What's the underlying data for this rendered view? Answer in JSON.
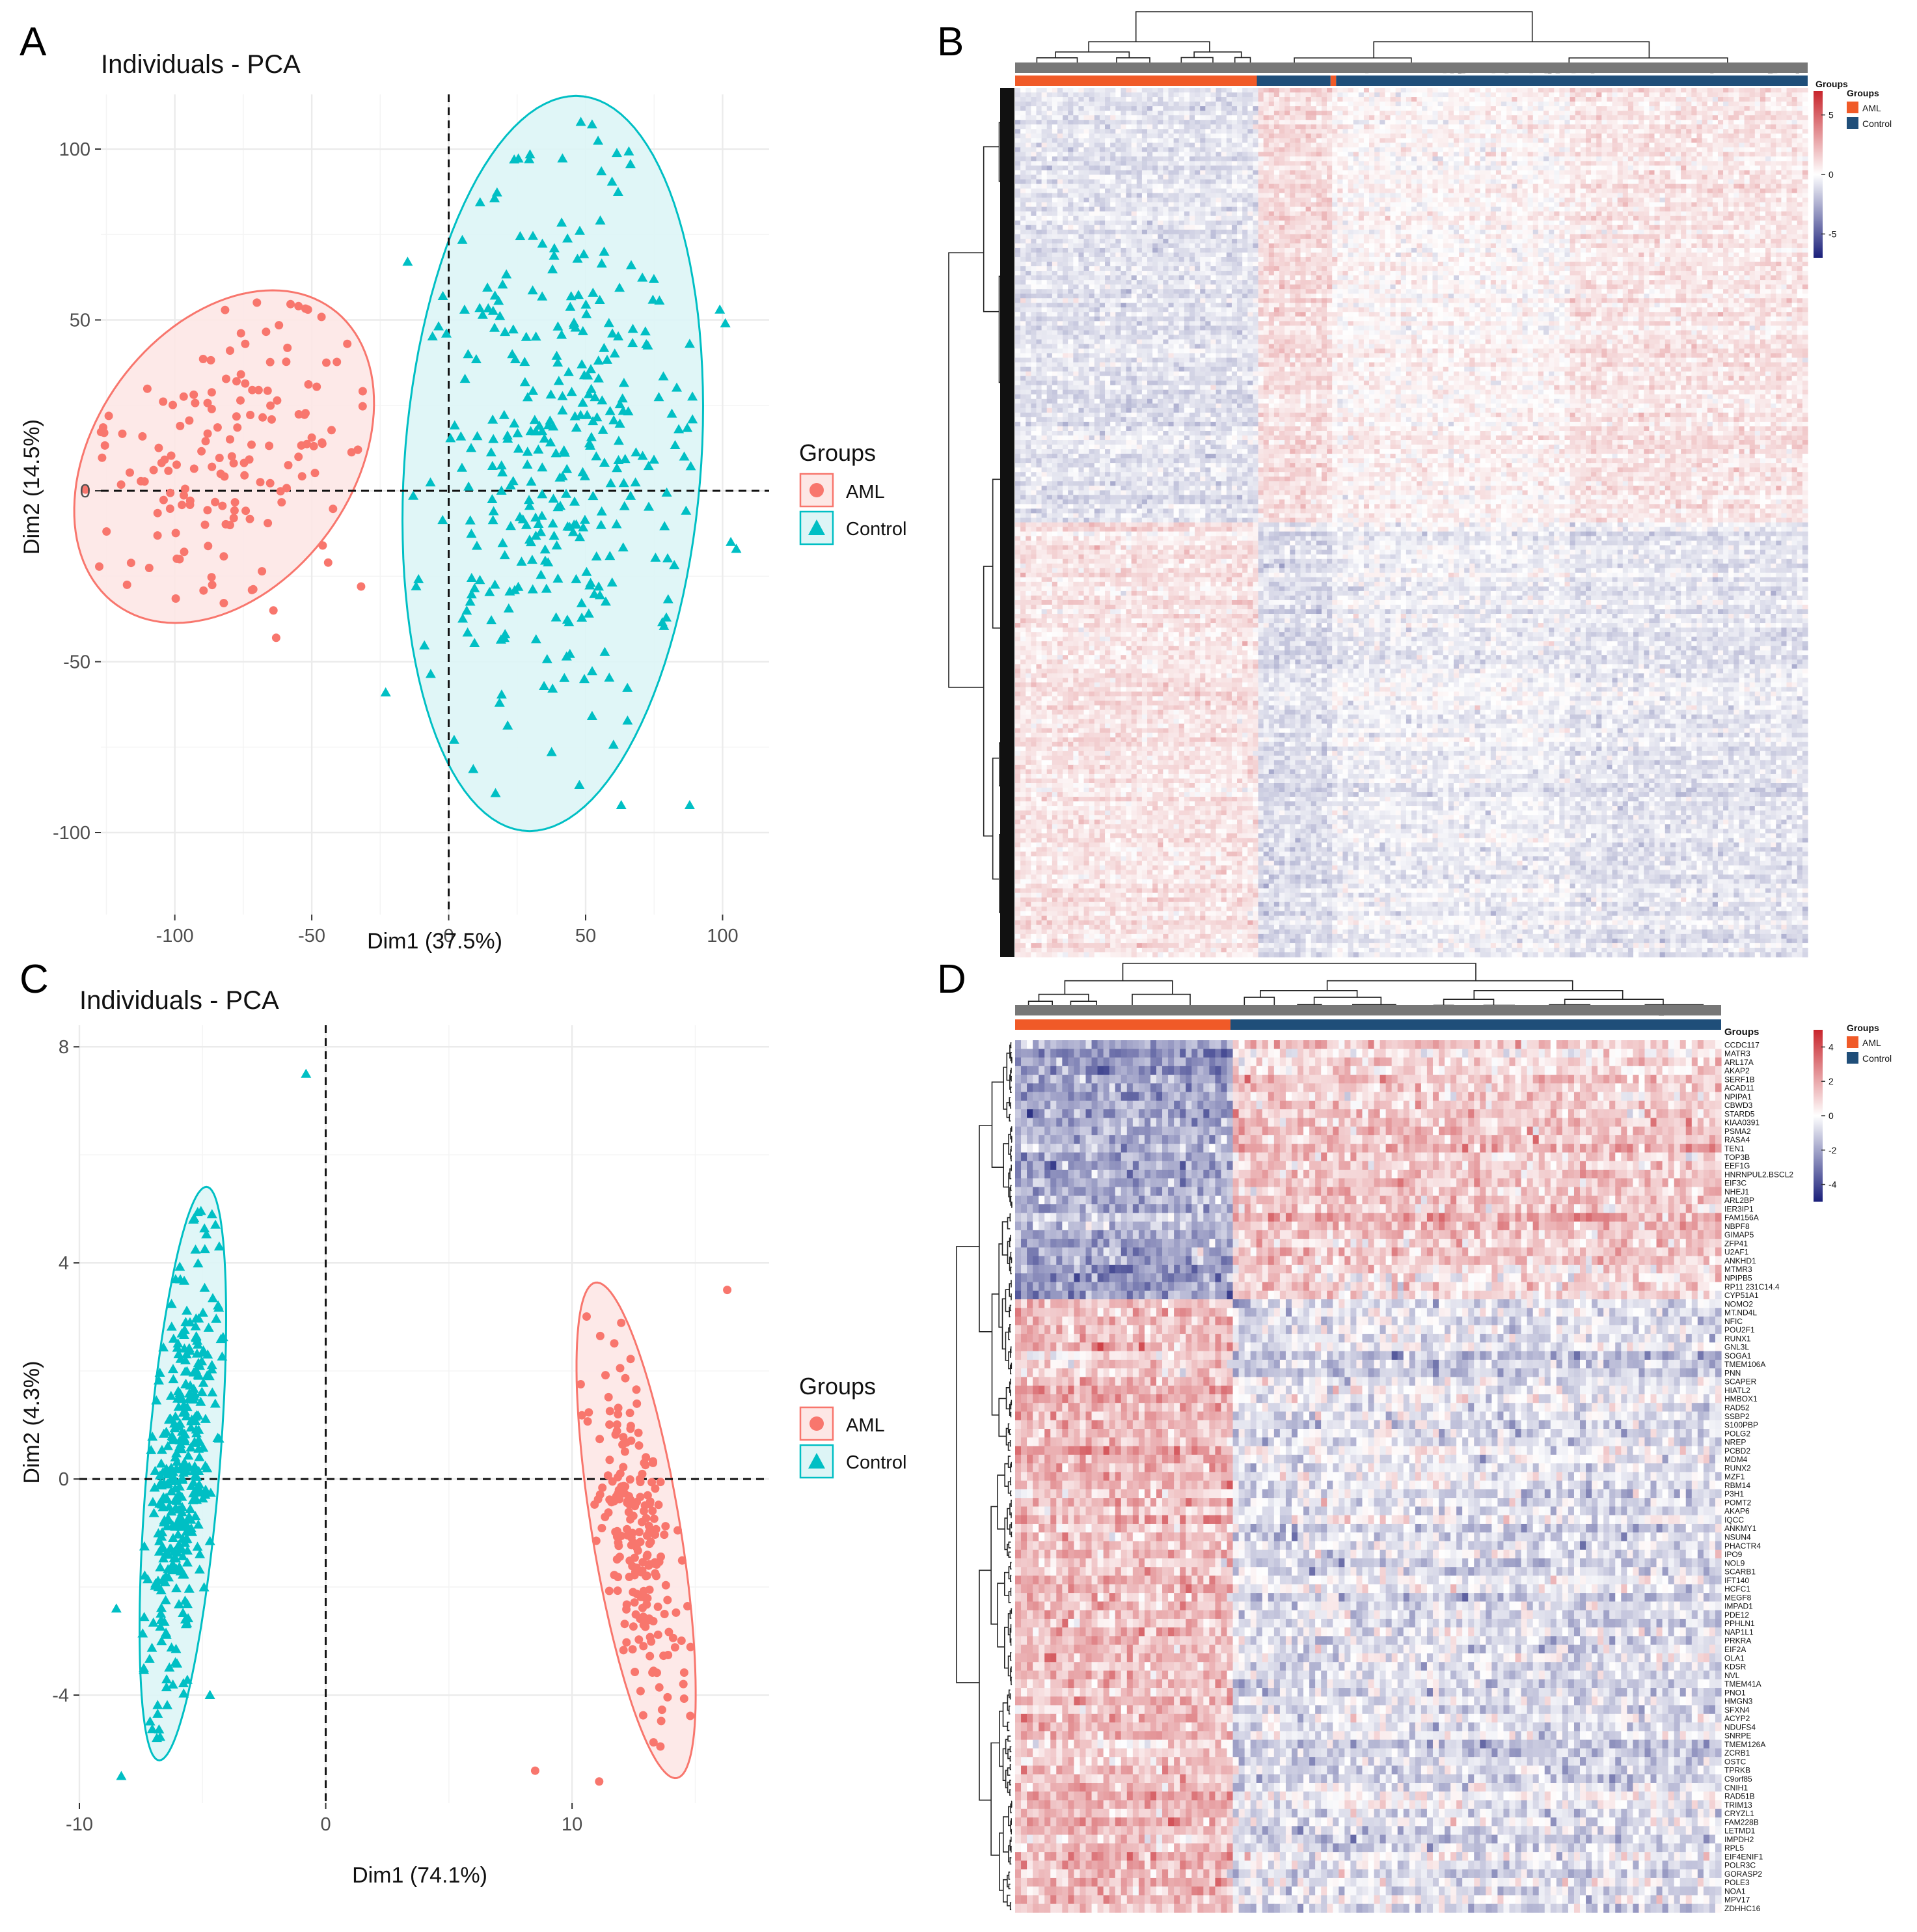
{
  "colors": {
    "aml": "#F8766D",
    "control": "#00BFC4",
    "aml_fill": "#FDE7E5",
    "control_fill": "#DDF5F6",
    "bar_aml": "#F05A28",
    "bar_control": "#1F4E79",
    "heat_high": "#C8252C",
    "heat_low": "#1A1F7A",
    "grid": "#EBEBEB",
    "dendro": "#222222"
  },
  "panels": {
    "A": {
      "letter": "A"
    },
    "B": {
      "letter": "B"
    },
    "C": {
      "letter": "C"
    },
    "D": {
      "letter": "D"
    }
  },
  "legend": {
    "title": "Groups",
    "aml": "AML",
    "control": "Control"
  },
  "chart_data": [
    {
      "id": "A",
      "type": "scatter",
      "title": "Individuals - PCA",
      "xlabel": "Dim1 (37.5%)",
      "ylabel": "Dim2 (14.5%)",
      "xlim": [
        -127,
        117
      ],
      "ylim": [
        -124,
        116
      ],
      "xticks": [
        -100,
        -50,
        0,
        50,
        100
      ],
      "yticks": [
        -100,
        -50,
        0,
        50,
        100
      ],
      "xtick_labels": [
        "-100",
        "-50",
        "0",
        "50",
        "100"
      ],
      "ytick_labels": [
        "-100",
        "-50",
        "0",
        "50",
        "100"
      ],
      "grid": true,
      "legend_position": "right",
      "series": [
        {
          "name": "AML",
          "shape": "circle",
          "n": 150,
          "seed": 11,
          "spread": 0.66,
          "ellipse": {
            "cx": -82,
            "cy": 10,
            "rx": 60,
            "ry": 42,
            "angle_deg": 35
          },
          "outliers": [
            [
              -46,
              -16
            ],
            [
              -44,
              -21
            ],
            [
              -32,
              -28
            ],
            [
              -63,
              -43
            ],
            [
              -64,
              -35
            ]
          ]
        },
        {
          "name": "Control",
          "shape": "triangle",
          "n": 330,
          "seed": 23,
          "spread": 0.64,
          "ellipse": {
            "cx": 38,
            "cy": 8,
            "rx": 54,
            "ry": 108,
            "angle_deg": -6
          },
          "outliers": [
            [
              -15,
              67
            ],
            [
              -23,
              -59
            ],
            [
              99,
              53
            ],
            [
              101,
              49
            ],
            [
              103,
              -15
            ],
            [
              105,
              -17
            ],
            [
              63,
              -92
            ],
            [
              88,
              -92
            ],
            [
              86,
              10
            ],
            [
              84,
              18
            ]
          ]
        }
      ]
    },
    {
      "id": "B",
      "type": "heatmap",
      "columns": 430,
      "rows": 1400,
      "annotation_title": "Groups",
      "column_groups": [
        {
          "name": "AML",
          "from": 0,
          "to": 0.305
        },
        {
          "name": "Control",
          "from": 0.305,
          "to": 0.398
        },
        {
          "name": "AML",
          "from": 0.398,
          "to": 0.405
        },
        {
          "name": "Control",
          "from": 0.405,
          "to": 1.0
        }
      ],
      "colorbar_ticks": [
        5,
        0,
        -5
      ],
      "colorbar_range": [
        -7,
        7
      ],
      "colorbar_labels": [
        "5",
        "0",
        "-5"
      ],
      "blocks_y": [
        0,
        0.3,
        0.5,
        1.0
      ],
      "blocks_x": [
        0,
        0.305,
        0.4,
        0.7,
        1.0
      ],
      "block_values": [
        [
          -0.8,
          1.3,
          0.3,
          0.9
        ],
        [
          -0.9,
          1.1,
          0.4,
          0.9
        ],
        [
          0.9,
          -1.1,
          -0.5,
          -0.8
        ]
      ]
    },
    {
      "id": "C",
      "type": "scatter",
      "title": "Individuals - PCA",
      "xlabel": "Dim1 (74.1%)",
      "ylabel": "Dim2 (4.3%)",
      "xlim": [
        -10,
        18
      ],
      "ylim": [
        -6.0,
        8.4
      ],
      "xticks": [
        -10,
        0,
        10
      ],
      "yticks": [
        -4,
        0,
        4,
        8
      ],
      "xtick_labels": [
        "-10",
        "0",
        "10"
      ],
      "ytick_labels": [
        "-4",
        "0",
        "4",
        "8"
      ],
      "grid": true,
      "legend_position": "right",
      "series": [
        {
          "name": "Control",
          "shape": "triangle",
          "n": 360,
          "seed": 37,
          "spread": 0.62,
          "ellipse": {
            "cx": -5.8,
            "cy": 0.1,
            "rx": 1.45,
            "ry": 5.4,
            "angle_deg": -11
          },
          "outliers": [
            [
              -0.8,
              7.5
            ],
            [
              -8.5,
              -2.4
            ],
            [
              -8.3,
              -5.5
            ],
            [
              -4.7,
              -4.0
            ]
          ]
        },
        {
          "name": "AML",
          "shape": "circle",
          "n": 210,
          "seed": 41,
          "spread": 0.62,
          "ellipse": {
            "cx": 12.6,
            "cy": -0.95,
            "rx": 1.7,
            "ry": 4.9,
            "angle_deg": 22
          },
          "outliers": [
            [
              8.5,
              -5.4
            ],
            [
              11.1,
              -5.6
            ],
            [
              16.3,
              3.5
            ]
          ]
        }
      ]
    },
    {
      "id": "D",
      "type": "heatmap",
      "columns": 360,
      "annotation_title": "Groups",
      "column_groups": [
        {
          "name": "AML",
          "from": 0,
          "to": 0.305
        },
        {
          "name": "Control",
          "from": 0.305,
          "to": 1.0
        }
      ],
      "colorbar_ticks": [
        4,
        2,
        0,
        -2,
        -4
      ],
      "colorbar_range": [
        -5,
        5
      ],
      "colorbar_labels": [
        "4",
        "2",
        "0",
        "-2",
        "-4"
      ],
      "upper_gene_count": 30,
      "genes": [
        "CCDC117",
        "MATR3",
        "ARL17A",
        "AKAP2",
        "SERF1B",
        "ACAD11",
        "NPIPA1",
        "CBWD3",
        "STARD5",
        "KIAA0391",
        "PSMA2",
        "RASA4",
        "TEN1",
        "TOP3B",
        "EEF1G",
        "HNRNPUL2.BSCL2",
        "EIF3C",
        "NHEJ1",
        "ARL2BP",
        "IER3IP1",
        "FAM156A",
        "NBPF8",
        "GIMAP5",
        "ZFP41",
        "U2AF1",
        "ANKHD1",
        "MTMR3",
        "NPIPB5",
        "RP11 231C14.4",
        "CYP51A1",
        "NOMO2",
        "MT.ND4L",
        "NFIC",
        "POU2F1",
        "RUNX1",
        "GNL3L",
        "SOGA1",
        "TMEM106A",
        "PNN",
        "SCAPER",
        "HIATL2",
        "HMBOX1",
        "RAD52",
        "SSBP2",
        "S100PBP",
        "POLG2",
        "NREP",
        "PCBD2",
        "MDM4",
        "RUNX2",
        "MZF1",
        "RBM14",
        "P3H1",
        "POMT2",
        "AKAP6",
        "IQCC",
        "ANKMY1",
        "NSUN4",
        "PHACTR4",
        "IPO9",
        "NOL9",
        "SCARB1",
        "IFT140",
        "HCFC1",
        "MEGF8",
        "IMPAD1",
        "PDE12",
        "PPHLN1",
        "NAP1L1",
        "PRKRA",
        "EIF2A",
        "OLA1",
        "KDSR",
        "NVL",
        "TMEM41A",
        "PNO1",
        "HMGN3",
        "SFXN4",
        "ACYP2",
        "NDUFS4",
        "SNRPE",
        "TMEM126A",
        "ZCRB1",
        "OSTC",
        "TPRKB",
        "C9orf85",
        "CNIH1",
        "RAD51B",
        "TRIM13",
        "CRYZL1",
        "FAM228B",
        "LETMD1",
        "IMPDH2",
        "RPL5",
        "EIF4ENIF1",
        "POLR3C",
        "GORASP2",
        "POLE3",
        "NOA1",
        "MPV17",
        "ZDHHC16"
      ]
    }
  ]
}
